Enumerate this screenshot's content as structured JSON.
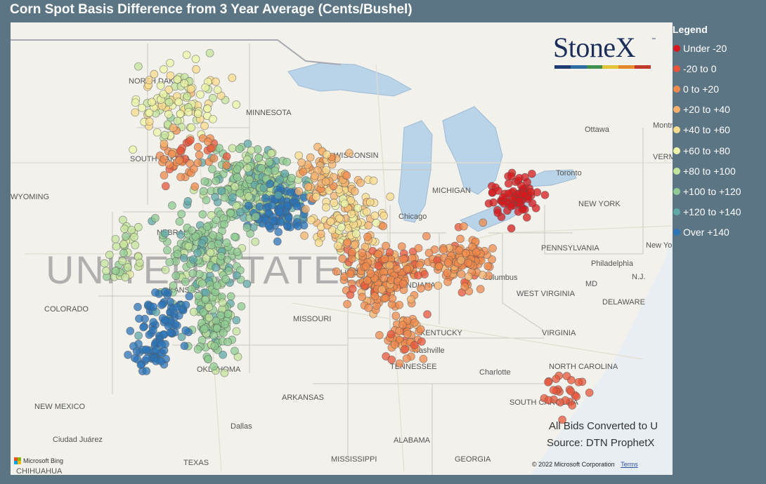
{
  "title": "Corn Spot Basis Difference from 3 Year Average (Cents/Bushel)",
  "logo": {
    "text": "StoneX",
    "tm": "™",
    "bar_colors": [
      "#1f3d73",
      "#2e6da4",
      "#3f8f4f",
      "#e3c23a",
      "#e58a2a",
      "#c0392b"
    ]
  },
  "legend": {
    "title": "Legend",
    "items": [
      {
        "label": "Under -20",
        "color": "#d7191c"
      },
      {
        "label": "-20 to 0",
        "color": "#e8553a"
      },
      {
        "label": "0 to +20",
        "color": "#f08a4b"
      },
      {
        "label": "+20 to +40",
        "color": "#f6b26b"
      },
      {
        "label": "+40 to +60",
        "color": "#fbdb8c"
      },
      {
        "label": "+60 to +80",
        "color": "#eef4a6"
      },
      {
        "label": "+80 to +100",
        "color": "#c4e49c"
      },
      {
        "label": "+100 to +120",
        "color": "#8fcb92"
      },
      {
        "label": "+120 to +140",
        "color": "#5fa8a8"
      },
      {
        "label": "Over +140",
        "color": "#2b74b8"
      }
    ]
  },
  "notes": {
    "line1": "All Bids Converted to U",
    "line2": "Source: DTN ProphetX"
  },
  "attribution": {
    "bing": "Microsoft Bing",
    "copyright": "© 2022 Microsoft Corporation",
    "terms": "Terms"
  },
  "map_labels": {
    "country": "UNITED STATES",
    "places": [
      "NORTH DAKOTA",
      "SOUTH DAKOTA",
      "MINNESOTA",
      "WISCONSIN",
      "WYOMING",
      "NEBRASKA",
      "COLORADO",
      "KANSAS",
      "MISSOURI",
      "OKLAHOMA",
      "NEW MEXICO",
      "TEXAS",
      "ARKANSAS",
      "MISSISSIPPI",
      "ALABAMA",
      "GEORGIA",
      "TENNESSEE",
      "KENTUCKY",
      "INDIANA",
      "ILLINOIS",
      "Chicago",
      "MICHIGAN",
      "Columbus",
      "WEST VIRGINIA",
      "VIRGINIA",
      "NORTH CAROLINA",
      "SOUTH CAROLINA",
      "PENNSYLVANIA",
      "NEW YORK",
      "Philadelphia",
      "MD",
      "DELAWARE",
      "N.J.",
      "New York",
      "Ottawa",
      "Montreal",
      "VERMONT",
      "Toronto",
      "Nashville",
      "Charlotte",
      "Dallas",
      "Ciudad Juárez",
      "CHIHUAHUA"
    ]
  }
}
